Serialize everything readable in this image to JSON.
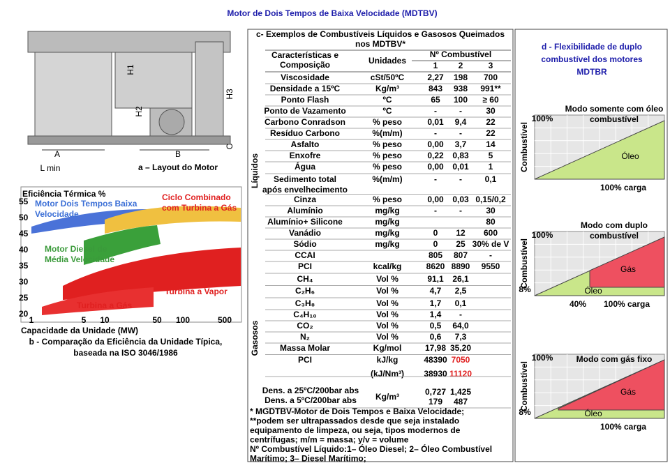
{
  "title": "Motor de Dois Tempos de Baixa Velocidade (MDTBV)",
  "layout": {
    "labels": [
      "H1",
      "H2",
      "H3",
      "A",
      "B",
      "C",
      "L min"
    ],
    "caption": "a – Layout do Motor"
  },
  "efficiency": {
    "y_title": "Eficiência Térmica %",
    "yticks": [
      "55",
      "50",
      "45",
      "40",
      "35",
      "30",
      "25",
      "20"
    ],
    "xticks": [
      "1",
      "5",
      "10",
      "50",
      "100",
      "500"
    ],
    "x_title": "Capacidade da Unidade (MW)",
    "regions": [
      [
        "Motor Dois Tempos Baixa",
        "Velocidade"
      ],
      [
        "Ciclo Combinado",
        "com Turbina a Gás"
      ],
      [
        "Motor Diesel de",
        "Média Velocidade"
      ],
      [
        "Turbina a Vapor"
      ],
      [
        "Turbina a Gás"
      ]
    ],
    "caption": [
      "b - Comparação da Eficiência da Unidade Típica,",
      "baseada na ISO 3046/1986"
    ]
  },
  "fuels": {
    "title": [
      "c- Exemplos de Combustíveis Líquidos e Gasosos Queimados",
      "nos MDTBV*"
    ],
    "side": [
      "Líquidos",
      "Gasosos"
    ],
    "header": {
      "characteristic": [
        "Características e",
        "Composição"
      ],
      "units": "Unidades",
      "fuel_no": "Nº Combustível",
      "numbers": [
        "1",
        "2",
        "3"
      ]
    },
    "rows": [
      [
        "Viscosidade",
        "cSt/50ºC",
        "2,27",
        "198",
        "700"
      ],
      [
        "Densidade a 15ºC",
        "Kg/m³",
        "843",
        "938",
        "991**"
      ],
      [
        "Ponto Flash",
        "ºC",
        "65",
        "100",
        "≥ 60"
      ],
      [
        "Ponto de Vazamento",
        "ºC",
        "-",
        "-",
        "30"
      ],
      [
        "Carbono Conradson",
        "% peso",
        "0,01",
        "9,4",
        "22"
      ],
      [
        "Resíduo Carbono",
        "%(m/m)",
        "-",
        "-",
        "22"
      ],
      [
        "Asfalto",
        "% peso",
        "0,00",
        "3,7",
        "14"
      ],
      [
        "Enxofre",
        "% peso",
        "0,22",
        "0,83",
        "5"
      ],
      [
        "Água",
        "% peso",
        "0,00",
        "0,01",
        "1"
      ],
      [
        [
          "Sedimento total",
          "após envelhecimento"
        ],
        "%(m/m)",
        "-",
        "-",
        "0,1"
      ],
      [
        "Cinza",
        "% peso",
        "0,00",
        "0,03",
        "0,15/0,2"
      ],
      [
        "Alumínio",
        "mg/kg",
        "-",
        "-",
        "30"
      ],
      [
        "Alumínio+ Silicone",
        "mg/kg",
        "80"
      ],
      [
        "Vanádio",
        "mg/kg",
        "0",
        "12",
        "600"
      ],
      [
        "Sódio",
        "mg/kg",
        "0",
        "25",
        "30% de V"
      ],
      [
        "CCAI",
        "805",
        "807",
        "-"
      ],
      [
        "PCI",
        "kcal/kg",
        "8620",
        "8890",
        "9550"
      ],
      [
        "CH₄",
        "Vol %",
        "91,1",
        "26,1"
      ],
      [
        "C₂H₆",
        "Vol %",
        "4,7",
        "2,5"
      ],
      [
        "C₃H₈",
        "Vol %",
        "1,7",
        "0,1"
      ],
      [
        "C₄H₁₀",
        "Vol %",
        "1,4",
        "-"
      ],
      [
        "CO₂",
        "Vol %",
        "0,5",
        "64,0"
      ],
      [
        "N₂",
        "Vol %",
        "0,6",
        "7,3"
      ],
      [
        "Massa Molar",
        "Kg/mol",
        "17,98",
        "35,20"
      ],
      [
        "PCI",
        [
          "kJ/kg",
          "(kJ/Nm³)"
        ],
        [
          "48390",
          "38930"
        ],
        [
          "7050",
          "11120"
        ]
      ],
      [
        [
          "Dens. a 25ºC/200bar abs",
          "Dens. a 5ºC/200bar abs"
        ],
        "Kg/m³",
        [
          "0,727",
          "179"
        ],
        [
          "1,425",
          "487"
        ]
      ]
    ],
    "notes": [
      "* MGDTBV-Motor de Dois Tempos e Baixa Velocidade;",
      "**podem ser ultrapassados desde que seja instalado",
      "equipamento de limpeza, ou seja, tipos modernos de",
      "centrífugas; m/m = massa; y/v = volume",
      "Nº Combustível Líquido:1– Óleo Diesel; 2– Óleo Combustível",
      "Marítimo; 3– Diesel Marítimo;"
    ]
  },
  "flex": {
    "title": [
      "d - Flexibilidade de duplo",
      "combustível dos motores",
      "MDTBR"
    ],
    "axis": "Combustível",
    "charts": [
      {
        "mode": [
          "Modo somente com óleo",
          "combustível"
        ],
        "top": "100%",
        "fills": [
          "Óleo"
        ],
        "x": [
          "100% carga"
        ]
      },
      {
        "mode": [
          "Modo com duplo",
          "combustível"
        ],
        "top": "100%",
        "low": "8%",
        "fills": [
          "Gás",
          "Óleo"
        ],
        "x": [
          "40%",
          "100% carga"
        ]
      },
      {
        "mode": [
          "Modo com gás fixo"
        ],
        "top": "100%",
        "low": "8%",
        "fills": [
          "Gás",
          "Óleo"
        ],
        "x": [
          "100% carga"
        ]
      }
    ]
  }
}
